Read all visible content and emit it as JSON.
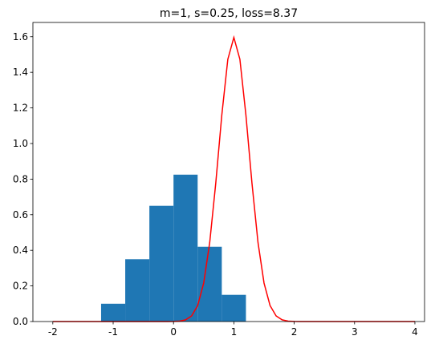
{
  "chart_data": {
    "type": "histogram",
    "title": "m=1, s=0.25, loss=8.37",
    "bins": [
      -1.2,
      -0.8,
      -0.4,
      0,
      0.4,
      0.8,
      1.2
    ],
    "values": [
      0.1,
      0.35,
      0.65,
      0.825,
      0.42,
      0.15
    ],
    "color": "#1f77b4",
    "overlay": {
      "type": "line",
      "color": "red",
      "x": [
        -2,
        -1.9,
        -1.8,
        -1.7,
        -1.6,
        -1.5,
        -1.4,
        -1.3,
        -1.2,
        -1.1,
        -1,
        -0.9,
        -0.8,
        -0.7,
        -0.6,
        -0.5,
        -0.4,
        -0.3,
        -0.2,
        -0.1,
        0,
        0.1,
        0.2,
        0.3,
        0.4,
        0.5,
        0.6,
        0.7,
        0.8,
        0.9,
        1,
        1.1,
        1.2,
        1.3,
        1.4,
        1.5,
        1.6,
        1.7,
        1.8,
        1.9,
        2,
        2.1,
        2.2,
        2.3,
        2.4,
        2.5,
        2.6,
        2.7,
        2.8,
        2.9,
        3,
        3.1,
        3.2,
        3.3,
        3.4,
        3.5,
        3.6,
        3.7,
        3.8,
        3.9,
        4
      ],
      "values": [
        0,
        0,
        0,
        0,
        0,
        0,
        0,
        0,
        0,
        0,
        0,
        0,
        0,
        0,
        0,
        0,
        0,
        0,
        0,
        0,
        0.0005,
        0.0024,
        0.0095,
        0.0317,
        0.0896,
        0.216,
        0.444,
        0.777,
        1.159,
        1.473,
        1.596,
        1.473,
        1.159,
        0.777,
        0.444,
        0.216,
        0.0896,
        0.0317,
        0.0095,
        0.0024,
        0.0005,
        0,
        0,
        0,
        0,
        0,
        0,
        0,
        0,
        0,
        0,
        0,
        0,
        0,
        0,
        0,
        0,
        0,
        0,
        0,
        0
      ]
    },
    "xlim": [
      -2.33,
      4.16
    ],
    "ylim": [
      0,
      1.68
    ],
    "xticks": [
      -2,
      -1,
      0,
      1,
      2,
      3,
      4
    ],
    "yticks": [
      {
        "value": 0,
        "label": "0.0"
      },
      0.2,
      0.4,
      0.6,
      0.8,
      {
        "value": 1,
        "label": "1.0"
      },
      1.2,
      1.4,
      1.6
    ]
  }
}
